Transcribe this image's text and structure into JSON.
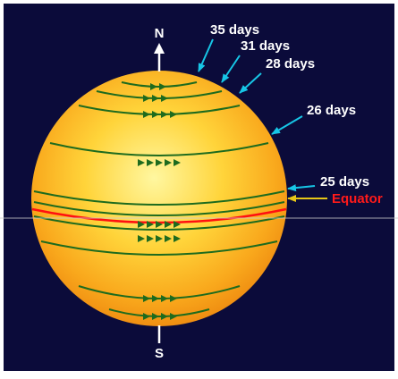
{
  "labels": {
    "north": "N",
    "south": "S",
    "equator": "Equator"
  },
  "rotation_periods": [
    {
      "period": "35 days"
    },
    {
      "period": "31 days"
    },
    {
      "period": "28 days"
    },
    {
      "period": "26 days"
    },
    {
      "period": "25 days"
    }
  ],
  "colors": {
    "background": "#0b0b3a",
    "sun_core": "#fff36a",
    "sun_edge": "#f08a10",
    "latitude_lines": "#1e6b1e",
    "equator_line": "#ff1010",
    "pointer_arrows": "#17c6e6",
    "equator_pointer": "#e6c617",
    "text": "#ffffff",
    "equator_text": "#ff1a1a"
  }
}
